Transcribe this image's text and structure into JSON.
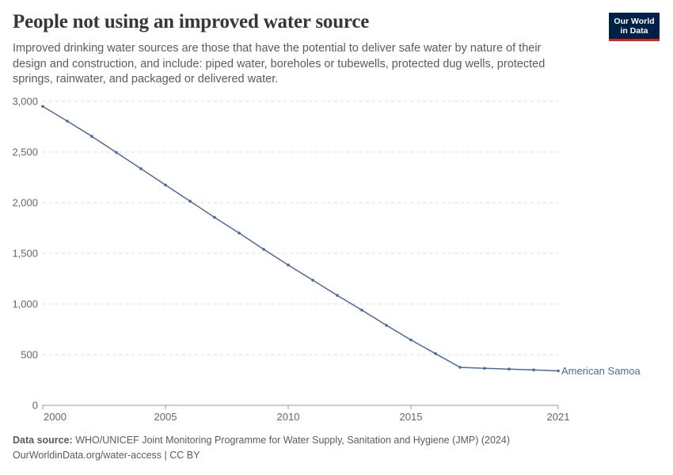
{
  "header": {
    "title": "People not using an improved water source",
    "subtitle": "Improved drinking water sources are those that have the potential to deliver safe water by nature of their design and construction, and include: piped water, boreholes or tubewells, protected dug wells, protected springs, rainwater, and packaged or delivered water."
  },
  "logo": {
    "line1": "Our World",
    "line2": "in Data"
  },
  "footer": {
    "source_label": "Data source:",
    "source_text": "WHO/UNICEF Joint Monitoring Programme for Water Supply, Sanitation and Hygiene (JMP) (2024)",
    "link_text": "OurWorldinData.org/water-access | CC BY"
  },
  "colors": {
    "series": "#4c6a9c",
    "grid": "#dddddd",
    "text": "#666666",
    "logo_bg": "#002147",
    "logo_accent": "#ce261e"
  },
  "chart_data": {
    "type": "line",
    "title": "People not using an improved water source",
    "xlabel": "",
    "ylabel": "",
    "xlim": [
      2000,
      2021
    ],
    "ylim": [
      0,
      3000
    ],
    "x_ticks": [
      "2000",
      "2005",
      "2010",
      "2015",
      "2021"
    ],
    "y_ticks": [
      "0",
      "500",
      "1,000",
      "1,500",
      "2,000",
      "2,500",
      "3,000"
    ],
    "grid": true,
    "series": [
      {
        "name": "American Samoa",
        "x": [
          2000,
          2001,
          2002,
          2003,
          2004,
          2005,
          2006,
          2007,
          2008,
          2009,
          2010,
          2011,
          2012,
          2013,
          2014,
          2015,
          2016,
          2017,
          2018,
          2019,
          2020,
          2021
        ],
        "values": [
          2950,
          2805,
          2655,
          2495,
          2335,
          2175,
          2015,
          1855,
          1700,
          1540,
          1385,
          1235,
          1085,
          940,
          790,
          645,
          510,
          375,
          365,
          358,
          350,
          340
        ]
      }
    ]
  }
}
